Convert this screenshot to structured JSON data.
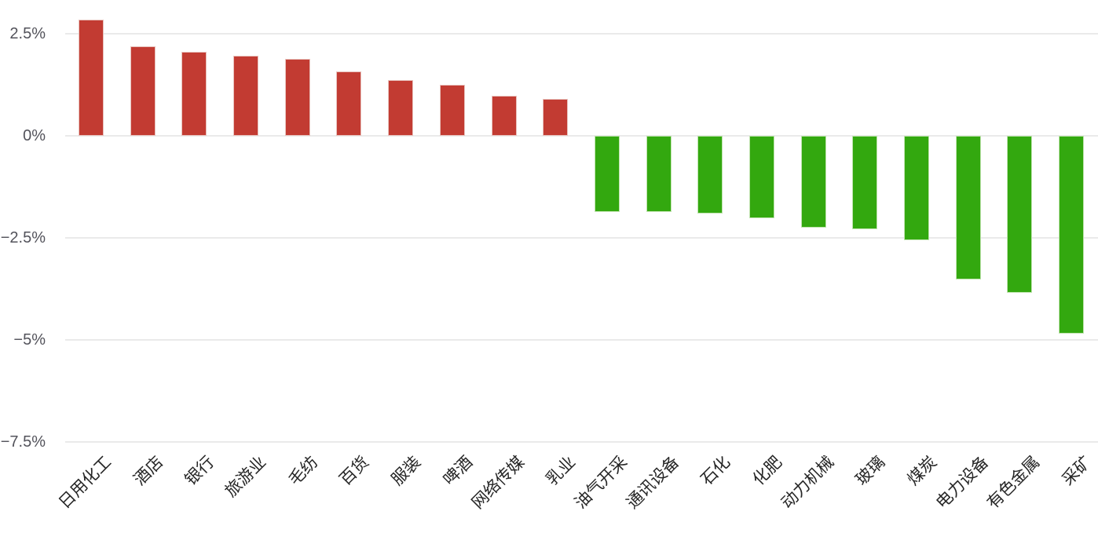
{
  "chart_data": {
    "type": "bar",
    "title": "",
    "xlabel": "",
    "ylabel": "",
    "unit": "%",
    "categories": [
      "日用化工",
      "酒店",
      "银行",
      "旅游业",
      "毛纺",
      "百货",
      "服装",
      "啤酒",
      "网络传媒",
      "乳业",
      "油气开采",
      "通讯设备",
      "石化",
      "化肥",
      "动力机械",
      "玻璃",
      "煤炭",
      "电力设备",
      "有色金属",
      "采矿"
    ],
    "values": [
      2.84,
      2.19,
      2.05,
      1.96,
      1.88,
      1.57,
      1.37,
      1.26,
      0.98,
      0.9,
      -1.87,
      -1.87,
      -1.9,
      -2.01,
      -2.24,
      -2.28,
      -2.55,
      -3.51,
      -3.85,
      -4.84
    ],
    "yticks": [
      {
        "label": "2.5%",
        "value": 2.5
      },
      {
        "label": "0%",
        "value": 0
      },
      {
        "label": "−2.5%",
        "value": -2.5
      },
      {
        "label": "−5%",
        "value": -5
      },
      {
        "label": "−7.5%",
        "value": -7.5
      }
    ],
    "ylim": [
      -7.5,
      3.3
    ],
    "grid": true,
    "legend": null,
    "colors": {
      "positive": "#c23b32",
      "negative": "#33a80f",
      "gridline": "#eaeaea",
      "y_tick_text": "#53535b",
      "x_tick_text": "#262626",
      "background": "#ffffff"
    }
  }
}
